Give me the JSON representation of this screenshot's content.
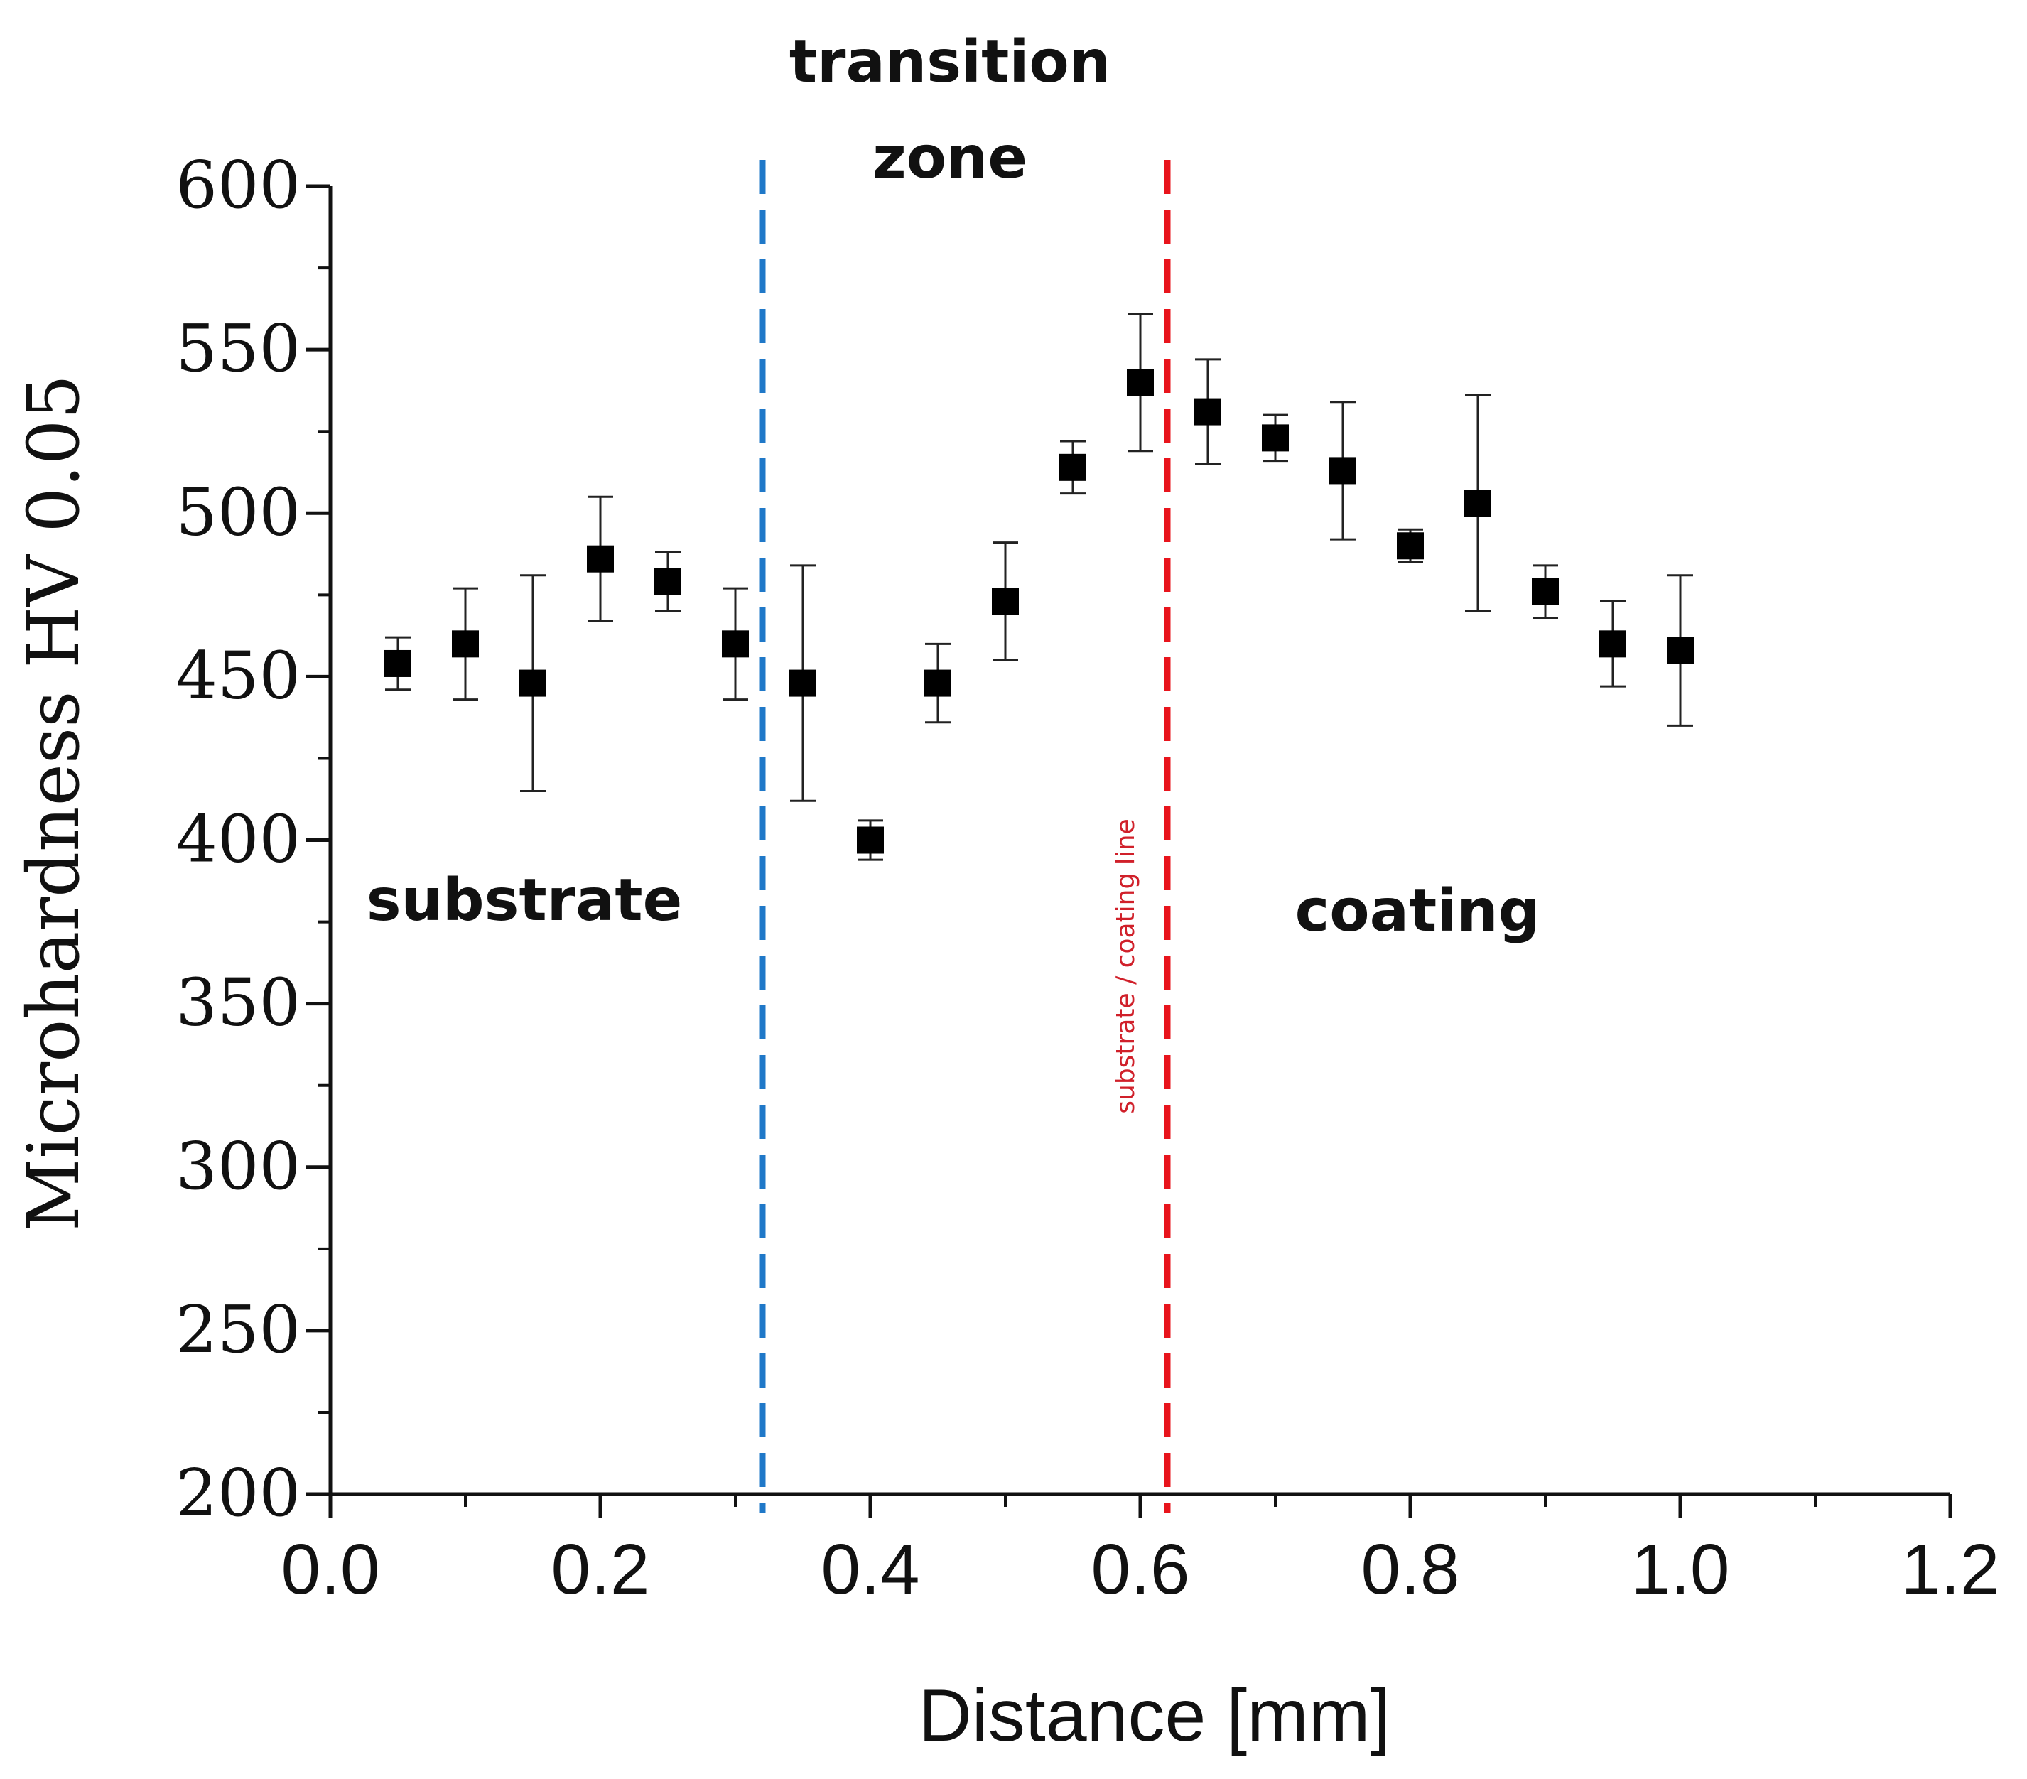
{
  "chart_data": {
    "type": "scatter",
    "title": "",
    "xlabel": "Distance [mm]",
    "ylabel": "Microhardness HV 0.05",
    "xlim": [
      0.0,
      1.2
    ],
    "ylim": [
      200,
      600
    ],
    "x_ticks": [
      0.0,
      0.2,
      0.4,
      0.6,
      0.8,
      1.0,
      1.2
    ],
    "x_tick_labels": [
      "0.0",
      "0.2",
      "0.4",
      "0.6",
      "0.8",
      "1.0",
      "1.2"
    ],
    "y_ticks": [
      200,
      250,
      300,
      350,
      400,
      450,
      500,
      550,
      600
    ],
    "y_tick_labels": [
      "200",
      "250",
      "300",
      "350",
      "400",
      "450",
      "500",
      "550",
      "600"
    ],
    "grid": false,
    "series": [
      {
        "name": "Microhardness",
        "marker": "square",
        "color": "#000000",
        "x": [
          0.05,
          0.1,
          0.15,
          0.2,
          0.25,
          0.3,
          0.35,
          0.4,
          0.45,
          0.5,
          0.55,
          0.6,
          0.65,
          0.7,
          0.75,
          0.8,
          0.85,
          0.9,
          0.95,
          1.0
        ],
        "y": [
          454,
          460,
          448,
          486,
          479,
          460,
          448,
          400,
          448,
          473,
          514,
          540,
          531,
          523,
          513,
          490,
          503,
          476,
          460,
          458
        ],
        "yerr": [
          8,
          17,
          33,
          19,
          9,
          17,
          36,
          6,
          12,
          18,
          8,
          21,
          16,
          7,
          21,
          5,
          33,
          8,
          13,
          23
        ]
      }
    ],
    "vlines": [
      {
        "x": 0.32,
        "color": "#1f78c8",
        "style": "dashed",
        "name": "transition-start-line"
      },
      {
        "x": 0.62,
        "color": "#e8141c",
        "style": "dashed",
        "name": "substrate-coating-line"
      }
    ],
    "annotations": {
      "substrate": "substrate",
      "transition_line1": "transition",
      "transition_line2": "zone",
      "coating": "coating",
      "interface": "substrate / coating line"
    }
  }
}
